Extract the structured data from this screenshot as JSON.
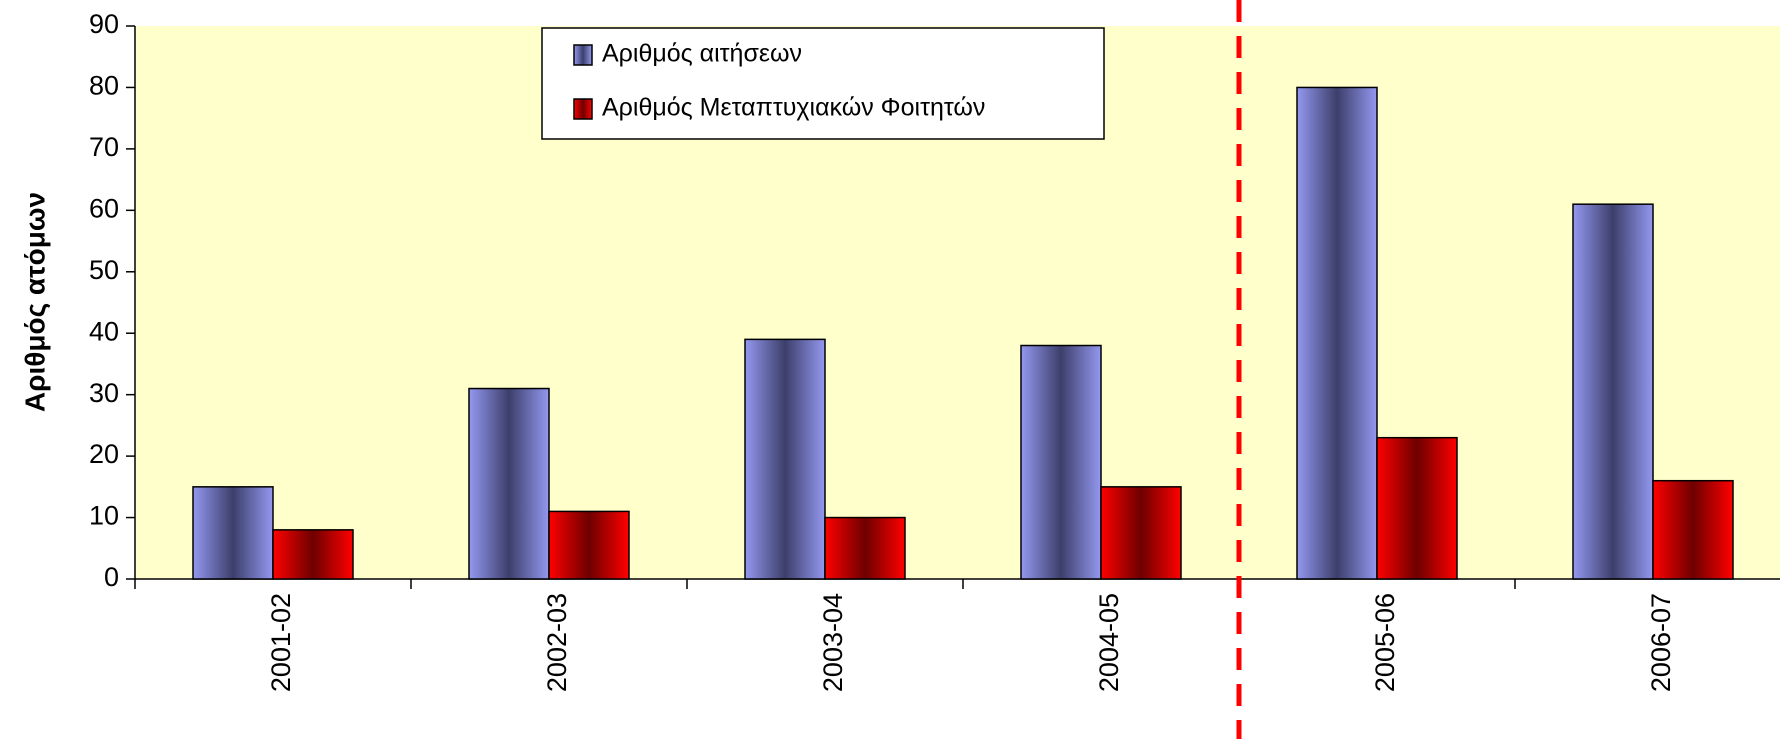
{
  "chart_data": {
    "type": "bar",
    "title": "",
    "xlabel": "",
    "ylabel": "Αριθμός ατόμων",
    "ylim": [
      0,
      90
    ],
    "yticks": [
      0,
      10,
      20,
      30,
      40,
      50,
      60,
      70,
      80,
      90
    ],
    "categories": [
      "2001-02",
      "2002-03",
      "2003-04",
      "2004-05",
      "2005-06",
      "2006-07"
    ],
    "series": [
      {
        "name": "Αριθμός αιτήσεων",
        "values": [
          15,
          31,
          39,
          38,
          80,
          61
        ],
        "color": "#8a8fe6"
      },
      {
        "name": "Αριθμός Μεταπτυχιακών Φοιτητών",
        "values": [
          8,
          11,
          10,
          15,
          23,
          16
        ],
        "color": "#e00000"
      }
    ],
    "plot_background": "#ffffcc",
    "reference_line": {
      "after_category": "2004-05",
      "color": "#ff0000",
      "style": "dashed"
    },
    "legend_position": "top-center",
    "grid": false
  }
}
